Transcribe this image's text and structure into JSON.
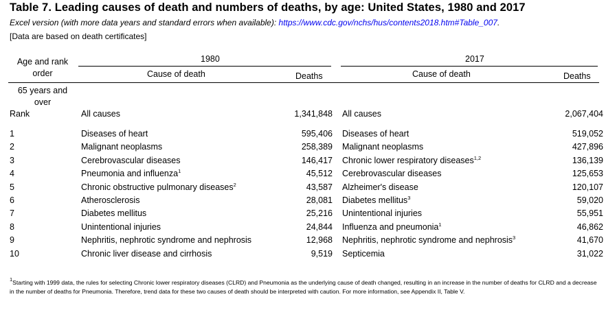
{
  "title": "Table 7. Leading causes of death and numbers of deaths, by age: United States, 1980 and 2017",
  "subtitle_text": "Excel version (with more data years and standard errors when available):",
  "subtitle_link": "https://www.cdc.gov/nchs/hus/contents2018.htm#Table_007",
  "subtitle_end": ".",
  "bracket_note": "[Data are based on death certificates]",
  "header": {
    "age_rank_line1": "Age and rank",
    "age_rank_line2": "order",
    "year1": "1980",
    "year2": "2017",
    "cause_col": "Cause of death",
    "deaths_col": "Deaths"
  },
  "age_group_line1": "65 years and",
  "age_group_line2": "over",
  "all_causes_row": {
    "rank_label": "Rank",
    "cause_1980": "All causes",
    "deaths_1980": "1,341,848",
    "cause_2017": "All causes",
    "deaths_2017": "2,067,404"
  },
  "rows": [
    {
      "rank": "1",
      "cause_1980": "Diseases of heart",
      "sup_1980": "",
      "deaths_1980": "595,406",
      "cause_2017": "Diseases of heart",
      "sup_2017": "",
      "deaths_2017": "519,052"
    },
    {
      "rank": "2",
      "cause_1980": "Malignant neoplasms",
      "sup_1980": "",
      "deaths_1980": "258,389",
      "cause_2017": "Malignant neoplasms",
      "sup_2017": "",
      "deaths_2017": "427,896"
    },
    {
      "rank": "3",
      "cause_1980": "Cerebrovascular diseases",
      "sup_1980": "",
      "deaths_1980": "146,417",
      "cause_2017": "Chronic lower respiratory diseases",
      "sup_2017": "1,2",
      "deaths_2017": "136,139"
    },
    {
      "rank": "4",
      "cause_1980": "Pneumonia and influenza",
      "sup_1980": "1",
      "deaths_1980": "45,512",
      "cause_2017": "Cerebrovascular diseases",
      "sup_2017": "",
      "deaths_2017": "125,653"
    },
    {
      "rank": "5",
      "cause_1980": "Chronic obstructive pulmonary diseases",
      "sup_1980": "2",
      "deaths_1980": "43,587",
      "cause_2017": "Alzheimer's disease",
      "sup_2017": "",
      "deaths_2017": "120,107"
    },
    {
      "rank": "6",
      "cause_1980": "Atherosclerosis",
      "sup_1980": "",
      "deaths_1980": "28,081",
      "cause_2017": "Diabetes mellitus",
      "sup_2017": "3",
      "deaths_2017": "59,020"
    },
    {
      "rank": "7",
      "cause_1980": "Diabetes mellitus",
      "sup_1980": "",
      "deaths_1980": "25,216",
      "cause_2017": "Unintentional injuries",
      "sup_2017": "",
      "deaths_2017": "55,951"
    },
    {
      "rank": "8",
      "cause_1980": "Unintentional injuries",
      "sup_1980": "",
      "deaths_1980": "24,844",
      "cause_2017": "Influenza and pneumonia",
      "sup_2017": "1",
      "deaths_2017": "46,862"
    },
    {
      "rank": "9",
      "cause_1980": "Nephritis, nephrotic syndrome and nephrosis",
      "sup_1980": "",
      "deaths_1980": "12,968",
      "cause_2017": "Nephritis, nephrotic syndrome and nephrosis",
      "sup_2017": "3",
      "deaths_2017": "41,670"
    },
    {
      "rank": "10",
      "cause_1980": "Chronic liver disease and cirrhosis",
      "sup_1980": "",
      "deaths_1980": "9,519",
      "cause_2017": "Septicemia",
      "sup_2017": "",
      "deaths_2017": "31,022"
    }
  ],
  "footnote": {
    "marker": "1",
    "text": "Starting with 1999 data, the rules for selecting Chronic lower respiratory diseases (CLRD) and Pneumonia as the underlying cause of death changed, resulting in an increase in the number of deaths for CLRD and a decrease in the number of deaths for Pneumonia. Therefore, trend data for these two causes of death should be interpreted with caution. For more information, see Appendix II, Table V."
  },
  "colors": {
    "link": "#0000ee",
    "text": "#000000",
    "background": "#ffffff"
  }
}
